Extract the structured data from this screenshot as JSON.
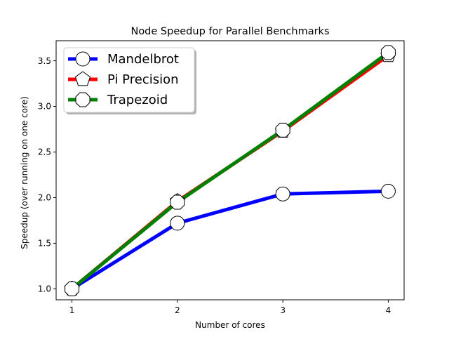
{
  "chart_data": {
    "type": "line",
    "title": "Node Speedup for Parallel Benchmarks",
    "xlabel": "Number of cores",
    "ylabel": "Speedup (over running on one core)",
    "x": [
      1,
      2,
      3,
      4
    ],
    "x_ticks": [
      1,
      2,
      3,
      4
    ],
    "y_ticks": [
      1.0,
      1.5,
      2.0,
      2.5,
      3.0,
      3.5
    ],
    "xlim": [
      0.85,
      4.15
    ],
    "ylim": [
      0.88,
      3.72
    ],
    "grid": false,
    "legend_position": "top-left",
    "series": [
      {
        "name": "Mandelbrot",
        "color": "#0000ff",
        "marker": "circle",
        "values": [
          1.0,
          1.72,
          2.04,
          2.07
        ]
      },
      {
        "name": "Pi Precision",
        "color": "#ff0000",
        "marker": "pentagon",
        "values": [
          1.0,
          1.96,
          2.73,
          3.56
        ]
      },
      {
        "name": "Trapezoid",
        "color": "#008000",
        "marker": "octagon",
        "values": [
          1.0,
          1.95,
          2.74,
          3.59
        ]
      }
    ]
  }
}
